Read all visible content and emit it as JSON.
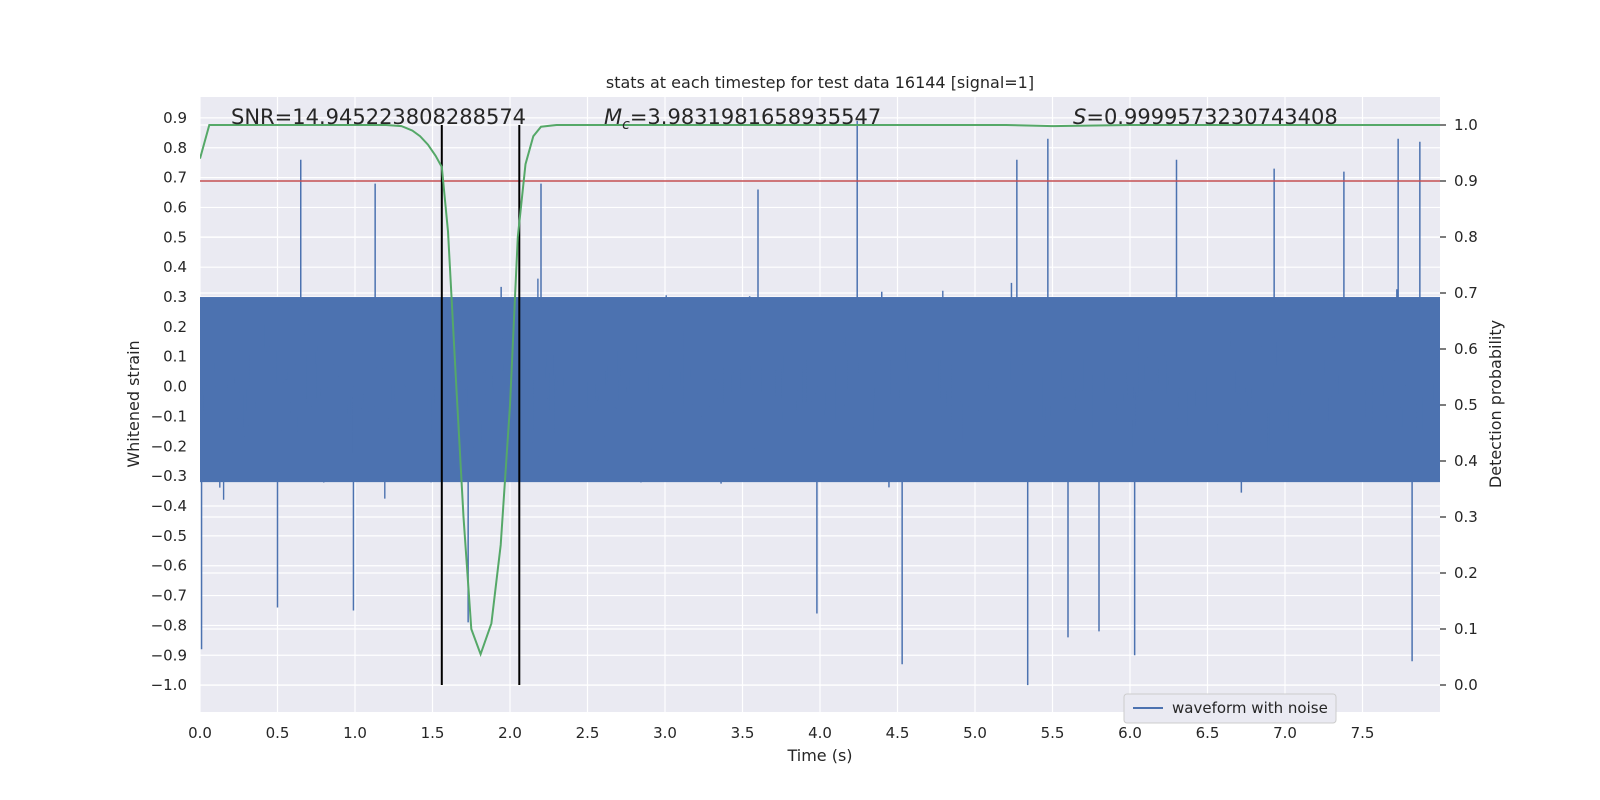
{
  "chart_data": {
    "type": "line",
    "title": "stats at each timestep for test data 16144 [signal=1]",
    "xlabel": "Time (s)",
    "ylabel_left": "Whitened strain",
    "ylabel_right": "Detection probability",
    "xlim": [
      0.0,
      8.0
    ],
    "ylim_left": [
      -1.09,
      0.97
    ],
    "ylim_right": [
      0.0,
      1.0
    ],
    "x_ticks": [
      "0.0",
      "0.5",
      "1.0",
      "1.5",
      "2.0",
      "2.5",
      "3.0",
      "3.5",
      "4.0",
      "4.5",
      "5.0",
      "5.5",
      "6.0",
      "6.5",
      "7.0",
      "7.5"
    ],
    "y_left_ticks": [
      "0.9",
      "0.8",
      "0.7",
      "0.6",
      "0.5",
      "0.4",
      "0.3",
      "0.2",
      "0.1",
      "0.0",
      "−0.1",
      "−0.2",
      "−0.3",
      "−0.4",
      "−0.5",
      "−0.6",
      "−0.7",
      "−0.8",
      "−0.9",
      "−1.0"
    ],
    "y_right_ticks": [
      "1.0",
      "0.9",
      "0.8",
      "0.7",
      "0.6",
      "0.5",
      "0.4",
      "0.3",
      "0.2",
      "0.1",
      "0.0"
    ],
    "grid": true,
    "legend": {
      "label": "waveform with noise",
      "location": "lower-right"
    },
    "annotations": {
      "snr": "SNR=14.945223808288574",
      "mc_symbol": "M",
      "mc_sub": "c",
      "mc_value": "=3.9831981658935547",
      "s_symbol": "S",
      "s_value": "=0.9999573230743408"
    },
    "threshold": {
      "value": 0.9,
      "axis": "right",
      "color": "#c44e52"
    },
    "vertical_lines": [
      1.56,
      2.06
    ],
    "series": [
      {
        "name": "waveform with noise",
        "axis": "left",
        "color": "#4c72b0",
        "style": "dense noise centered at 0, core band about ±0.3, spikes to about ±0.75",
        "spikes_up": [
          {
            "x": 0.65,
            "y": 0.76
          },
          {
            "x": 1.13,
            "y": 0.68
          },
          {
            "x": 2.2,
            "y": 0.68
          },
          {
            "x": 3.6,
            "y": 0.66
          },
          {
            "x": 4.24,
            "y": 0.89
          },
          {
            "x": 5.27,
            "y": 0.76
          },
          {
            "x": 5.47,
            "y": 0.83
          },
          {
            "x": 6.3,
            "y": 0.76
          },
          {
            "x": 6.93,
            "y": 0.73
          },
          {
            "x": 7.38,
            "y": 0.72
          },
          {
            "x": 7.73,
            "y": 0.83
          },
          {
            "x": 7.87,
            "y": 0.82
          }
        ],
        "spikes_down": [
          {
            "x": 0.01,
            "y": -0.88
          },
          {
            "x": 0.5,
            "y": -0.74
          },
          {
            "x": 0.99,
            "y": -0.75
          },
          {
            "x": 1.73,
            "y": -0.79
          },
          {
            "x": 3.98,
            "y": -0.76
          },
          {
            "x": 4.53,
            "y": -0.93
          },
          {
            "x": 5.34,
            "y": -1.0
          },
          {
            "x": 5.6,
            "y": -0.84
          },
          {
            "x": 5.8,
            "y": -0.82
          },
          {
            "x": 6.03,
            "y": -0.9
          },
          {
            "x": 7.82,
            "y": -0.92
          }
        ]
      },
      {
        "name": "detection probability",
        "axis": "right",
        "color": "#55a868",
        "x": [
          0.0,
          0.06,
          0.2,
          1.2,
          1.3,
          1.37,
          1.42,
          1.47,
          1.52,
          1.56,
          1.6,
          1.65,
          1.7,
          1.75,
          1.81,
          1.88,
          1.94,
          2.0,
          2.05,
          2.1,
          2.15,
          2.2,
          2.3,
          5.2,
          5.5,
          6.0,
          8.0
        ],
        "y": [
          0.94,
          1.0,
          1.0,
          1.0,
          0.998,
          0.99,
          0.98,
          0.965,
          0.945,
          0.925,
          0.81,
          0.55,
          0.3,
          0.1,
          0.055,
          0.11,
          0.25,
          0.5,
          0.8,
          0.93,
          0.98,
          0.997,
          1.0,
          1.0,
          0.998,
          1.0,
          1.0
        ]
      }
    ]
  }
}
